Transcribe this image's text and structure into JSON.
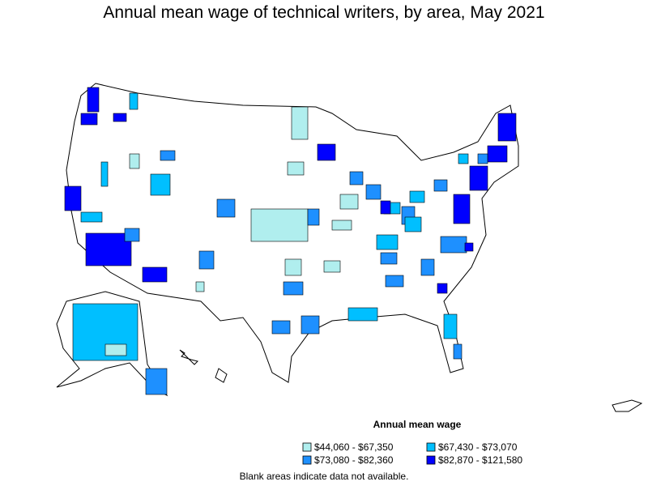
{
  "title": "Annual mean wage of technical writers, by area, May 2021",
  "legend": {
    "title": "Annual mean wage",
    "items": [
      {
        "label": "$44,060 - $67,350",
        "color": "#b0eeee"
      },
      {
        "label": "$67,430 - $73,070",
        "color": "#00bfff"
      },
      {
        "label": "$73,080 - $82,360",
        "color": "#1e90ff"
      },
      {
        "label": "$82,870 - $121,580",
        "color": "#0000ff"
      }
    ]
  },
  "note": "Blank areas indicate data not available."
}
